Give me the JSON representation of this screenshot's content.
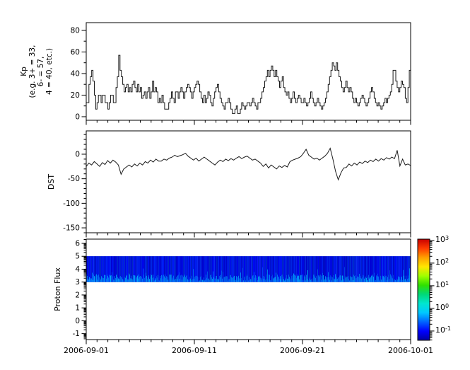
{
  "x_axis": {
    "labels": [
      "2006-09-01",
      "2006-09-11",
      "2006-09-21",
      "2006-10-01"
    ],
    "major_tick_days": [
      0,
      10,
      20,
      30
    ],
    "minor_every_days": 1,
    "range_days": [
      0,
      30
    ]
  },
  "chart_data": [
    {
      "type": "line",
      "style": "step",
      "panel": "kp",
      "ylabel_lines": [
        "Kp",
        "(e.g. 3+ = 33,",
        "6- = 57,",
        "4 = 40, etc.)"
      ],
      "ylim": [
        -3.3,
        87.2
      ],
      "yticks": [
        0,
        20,
        40,
        60,
        80
      ],
      "y_minor_step": 10,
      "x_step_days": 0.125,
      "line_color": "#1a1a1a",
      "values": [
        13,
        13,
        30,
        37,
        43,
        33,
        20,
        7,
        13,
        20,
        20,
        13,
        20,
        20,
        13,
        13,
        7,
        13,
        20,
        20,
        13,
        13,
        27,
        37,
        57,
        43,
        37,
        30,
        23,
        27,
        30,
        23,
        27,
        23,
        30,
        33,
        27,
        23,
        30,
        23,
        27,
        17,
        20,
        23,
        17,
        23,
        27,
        17,
        23,
        33,
        23,
        27,
        23,
        13,
        17,
        13,
        20,
        13,
        7,
        7,
        7,
        13,
        17,
        23,
        17,
        13,
        23,
        23,
        17,
        23,
        27,
        23,
        17,
        23,
        27,
        30,
        27,
        23,
        17,
        23,
        27,
        30,
        33,
        30,
        23,
        17,
        13,
        20,
        13,
        17,
        23,
        20,
        13,
        10,
        17,
        23,
        27,
        30,
        23,
        17,
        13,
        10,
        7,
        13,
        13,
        17,
        13,
        7,
        3,
        3,
        7,
        10,
        3,
        3,
        7,
        13,
        10,
        7,
        10,
        13,
        13,
        10,
        13,
        17,
        13,
        10,
        7,
        13,
        13,
        17,
        23,
        27,
        33,
        37,
        43,
        37,
        43,
        47,
        43,
        37,
        43,
        37,
        33,
        27,
        33,
        37,
        27,
        23,
        20,
        23,
        17,
        13,
        17,
        23,
        17,
        13,
        17,
        20,
        17,
        13,
        13,
        17,
        13,
        10,
        13,
        17,
        23,
        17,
        13,
        10,
        13,
        17,
        13,
        10,
        7,
        10,
        13,
        17,
        23,
        30,
        37,
        43,
        50,
        47,
        43,
        50,
        43,
        37,
        33,
        27,
        23,
        27,
        33,
        27,
        23,
        27,
        23,
        17,
        13,
        17,
        13,
        10,
        13,
        17,
        20,
        17,
        13,
        10,
        13,
        17,
        23,
        27,
        23,
        17,
        13,
        10,
        13,
        10,
        7,
        10,
        13,
        17,
        13,
        17,
        20,
        23,
        30,
        43,
        43,
        33,
        27,
        23,
        27,
        33,
        30,
        27,
        17,
        13,
        27,
        43
      ]
    },
    {
      "type": "line",
      "style": "linear",
      "panel": "dst",
      "ylabel": "DST",
      "ylim": [
        -160,
        47.5
      ],
      "yticks": [
        0,
        -50,
        -100,
        -150
      ],
      "y_minor_step": 10,
      "x_step_days": 0.25,
      "line_color": "#1a1a1a",
      "values": [
        -25,
        -18,
        -22,
        -15,
        -20,
        -25,
        -17,
        -21,
        -13,
        -18,
        -12,
        -16,
        -22,
        -41,
        -30,
        -26,
        -22,
        -26,
        -20,
        -24,
        -18,
        -22,
        -15,
        -18,
        -12,
        -16,
        -10,
        -14,
        -14,
        -10,
        -12,
        -8,
        -6,
        -2,
        -5,
        -3,
        -1,
        2,
        -4,
        -8,
        -12,
        -8,
        -14,
        -10,
        -6,
        -10,
        -14,
        -18,
        -22,
        -16,
        -12,
        -15,
        -10,
        -13,
        -9,
        -12,
        -8,
        -5,
        -9,
        -6,
        -4,
        -8,
        -12,
        -10,
        -14,
        -18,
        -25,
        -20,
        -28,
        -22,
        -26,
        -30,
        -24,
        -27,
        -23,
        -26,
        -15,
        -12,
        -10,
        -8,
        -5,
        2,
        10,
        -2,
        -6,
        -10,
        -8,
        -12,
        -8,
        -4,
        2,
        12,
        -10,
        -35,
        -52,
        -38,
        -28,
        -27,
        -20,
        -24,
        -18,
        -22,
        -16,
        -19,
        -14,
        -17,
        -12,
        -15,
        -10,
        -14,
        -9,
        -12,
        -7,
        -10,
        -6,
        -9,
        8,
        -24,
        -10,
        -22,
        -20,
        -23
      ]
    },
    {
      "type": "heatmap",
      "panel": "proton_flux",
      "ylabel": "Proton Flux",
      "ylim": [
        -1.46,
        6.33
      ],
      "yticks": [
        -1,
        0,
        1,
        2,
        3,
        4,
        5,
        6
      ],
      "y_minor": "log-decade",
      "band": {
        "y_bottom": 3,
        "y_top": 5,
        "base_color": "#0008c0",
        "streak_color": "#00a8ff",
        "texture_seed": 7
      },
      "colorbar": {
        "base": "10",
        "tick_exponents": [
          "3",
          "2",
          "1",
          "0",
          "-1"
        ],
        "range_exp": [
          -1.41,
          3.06
        ],
        "gradient_top_to_bottom": [
          "#c80000",
          "#ff3c00",
          "#ffa000",
          "#ffe600",
          "#a0ff00",
          "#30e000",
          "#00d878",
          "#00e6d0",
          "#00c8ff",
          "#0064ff",
          "#0000ff",
          "#0000a0"
        ]
      }
    }
  ]
}
